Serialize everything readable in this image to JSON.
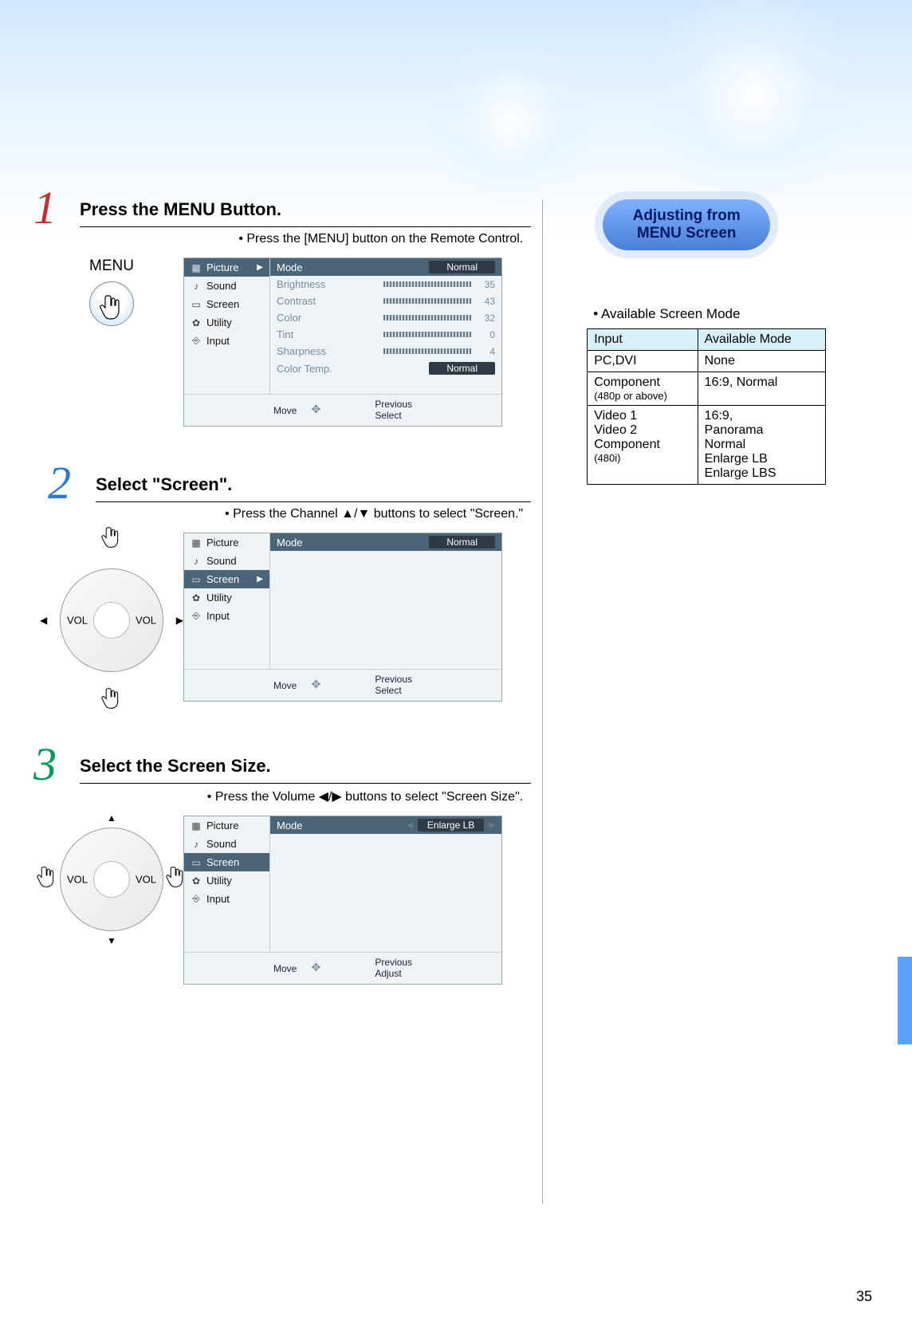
{
  "page_number": "35",
  "badge": {
    "line1": "Adjusting from",
    "line2": "MENU Screen"
  },
  "side": {
    "subtitle": "• Available Screen Mode",
    "headers": [
      "Input",
      "Available Mode"
    ],
    "rows": [
      {
        "input": "PC,DVI",
        "input_small": "",
        "mode": "None"
      },
      {
        "input": "Component",
        "input_small": "(480p or above)",
        "mode": "16:9, Normal"
      },
      {
        "input": "Video 1\nVideo 2\nComponent",
        "input_small": "(480i)",
        "mode": "16:9,\nPanorama\nNormal\nEnlarge LB\nEnlarge LBS"
      }
    ]
  },
  "steps": {
    "s1": {
      "num": "1",
      "title": "Press the MENU Button.",
      "sub": "• Press the [MENU] button on the Remote Control.",
      "remote_label": "MENU"
    },
    "s2": {
      "num": "2",
      "title": "Select \"Screen\".",
      "sub": "• Press the Channel ▲/▼ buttons to select \"Screen.\""
    },
    "s3": {
      "num": "3",
      "title": "Select the Screen Size.",
      "sub": "• Press the Volume ◀/▶ buttons to select \"Screen Size\"."
    }
  },
  "osd": {
    "menu": {
      "picture": "Picture",
      "sound": "Sound",
      "screen": "Screen",
      "utility": "Utility",
      "input": "Input"
    },
    "footer": {
      "move": "Move",
      "previous": "Previous",
      "select": "Select",
      "adjust": "Adjust"
    },
    "s1": {
      "rows": [
        {
          "label": "Mode",
          "type": "pill",
          "value": "Normal"
        },
        {
          "label": "Brightness",
          "type": "bar",
          "value": "35"
        },
        {
          "label": "Contrast",
          "type": "bar",
          "value": "43"
        },
        {
          "label": "Color",
          "type": "bar",
          "value": "32"
        },
        {
          "label": "Tint",
          "type": "bar",
          "value": "0"
        },
        {
          "label": "Sharpness",
          "type": "bar",
          "value": "4"
        },
        {
          "label": "Color Temp.",
          "type": "pill",
          "value": "Normal"
        }
      ]
    },
    "s2": {
      "mode_label": "Mode",
      "mode_value": "Normal"
    },
    "s3": {
      "mode_label": "Mode",
      "mode_value": "Enlarge LB"
    }
  },
  "labels": {
    "vol": "VOL"
  },
  "colors": {
    "step1": "#c03030",
    "step2": "#2a7bd0",
    "step3": "#009a5a",
    "osd_sel_bg": "#4a6478",
    "badge_grad_top": "#7fb1ff",
    "badge_grad_bot": "#4a7fd6",
    "table_header_bg": "#d7f1fb",
    "side_tab": "#5aa0ff"
  }
}
